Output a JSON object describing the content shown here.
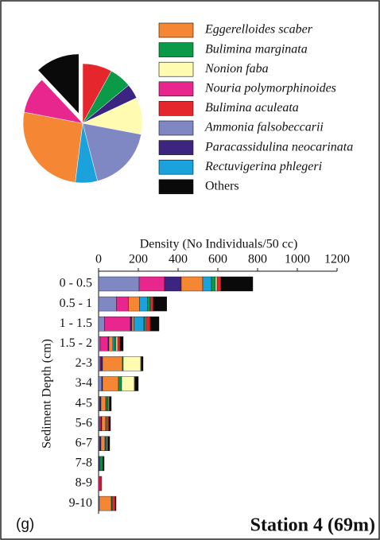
{
  "chart_data": [
    {
      "type": "pie",
      "values": [
        8,
        6,
        4,
        10,
        18,
        6,
        26,
        10,
        12
      ],
      "colors": [
        "#e5272d",
        "#0a9a48",
        "#3b2580",
        "#fffbb0",
        "#8088c4",
        "#1ba1db",
        "#f58634",
        "#e8268e",
        "#0a0a0a"
      ]
    },
    {
      "type": "bar",
      "x_label": "Density  (No Individuals/50 cc)",
      "y_label": "Sediment Depth (cm)",
      "categories": [
        "0 - 0.5",
        "0.5 - 1",
        "1 - 1.5",
        "1.5 - 2",
        "2-3",
        "3-4",
        "4-5",
        "5-6",
        "6-7",
        "7-8",
        "8-9",
        "9-10"
      ],
      "xlim": [
        0,
        1200
      ],
      "xticks": [
        0,
        200,
        400,
        600,
        800,
        1000,
        1200
      ],
      "series": [
        {
          "name": "Ammonia falsobeccarii",
          "color": "#8088c4",
          "values": [
            204,
            90,
            30,
            8,
            8,
            16,
            4,
            4,
            4,
            0,
            0,
            4
          ]
        },
        {
          "name": "Nouria polymorphinoides",
          "color": "#e8268e",
          "values": [
            128,
            60,
            130,
            40,
            4,
            0,
            4,
            8,
            4,
            0,
            8,
            0
          ]
        },
        {
          "name": "Paracassidulina neocarinata",
          "color": "#3b2580",
          "values": [
            84,
            0,
            8,
            4,
            8,
            4,
            4,
            4,
            4,
            4,
            0,
            0
          ]
        },
        {
          "name": "Eggerelloides scaber",
          "color": "#f58634",
          "values": [
            108,
            55,
            10,
            20,
            100,
            80,
            24,
            20,
            20,
            4,
            0,
            60
          ]
        },
        {
          "name": "Rectuvigerina phlegeri",
          "color": "#1ba1db",
          "values": [
            44,
            40,
            50,
            8,
            0,
            0,
            4,
            0,
            4,
            0,
            0,
            0
          ]
        },
        {
          "name": "Bulimina marginata",
          "color": "#0a9a48",
          "values": [
            20,
            15,
            8,
            8,
            4,
            16,
            8,
            4,
            4,
            12,
            0,
            4
          ]
        },
        {
          "name": "Nonion faba",
          "color": "#fffbb0",
          "values": [
            8,
            0,
            4,
            8,
            88,
            64,
            4,
            4,
            4,
            0,
            0,
            0
          ]
        },
        {
          "name": "Bulimina aculeata",
          "color": "#e5272d",
          "values": [
            20,
            15,
            20,
            12,
            4,
            4,
            4,
            8,
            4,
            4,
            8,
            16
          ]
        },
        {
          "name": "Others",
          "color": "#0a0a0a",
          "values": [
            160,
            68,
            44,
            16,
            8,
            16,
            8,
            8,
            8,
            4,
            0,
            4
          ]
        }
      ]
    }
  ],
  "panel_label": "(g)",
  "station": "Station 4 (69m)"
}
